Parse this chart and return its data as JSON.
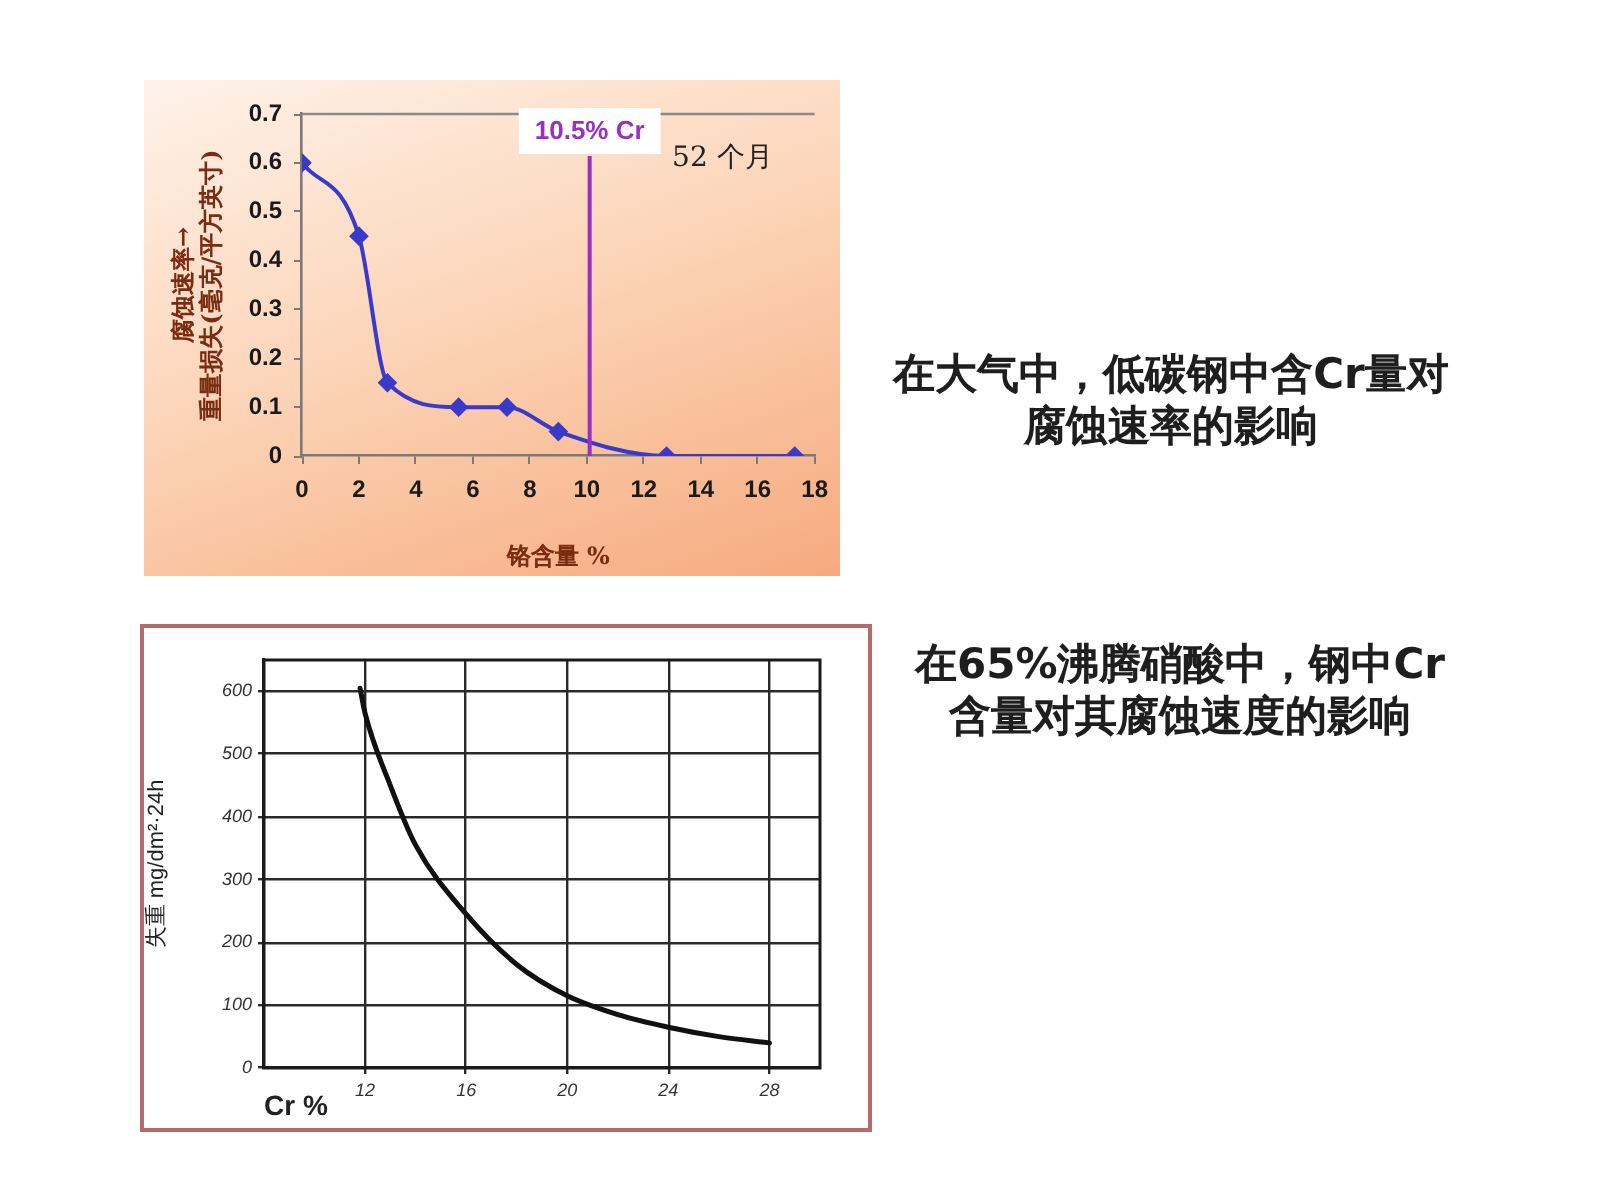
{
  "chart_data": [
    {
      "type": "line",
      "xlabel": "铬含量 %",
      "ylabel": "腐蚀速率→\n重量损失(毫克/平方英寸)",
      "x": [
        0,
        2,
        3,
        5.5,
        7.2,
        9,
        12.8,
        17.3
      ],
      "values": [
        0.6,
        0.45,
        0.15,
        0.1,
        0.1,
        0.05,
        0,
        0
      ],
      "color": "#3a3ac8",
      "marker": "diamond",
      "xlim": [
        0,
        18
      ],
      "xticks": [
        0,
        2,
        4,
        6,
        8,
        10,
        12,
        14,
        16,
        18
      ],
      "ylim": [
        0,
        0.7
      ],
      "yticks": [
        0,
        0.1,
        0.2,
        0.3,
        0.4,
        0.5,
        0.6,
        0.7
      ],
      "grid": false,
      "legend": false,
      "ref_lines": [
        {
          "axis": "x",
          "value": 10.1,
          "label": "10.5% Cr",
          "color": "#9a2fc4"
        }
      ],
      "annotations": [
        "52 个月"
      ]
    },
    {
      "type": "other",
      "title": "在大气中，低碳钢中含Cr量对腐蚀速率的影响"
    },
    {
      "type": "line",
      "xlabel": "Cr %",
      "ylabel": "失重 mg/dm²·24h",
      "x": [
        11.8,
        12,
        13,
        14,
        16,
        18,
        20,
        22,
        24,
        26,
        28
      ],
      "values": [
        605,
        565,
        450,
        355,
        245,
        165,
        115,
        85,
        65,
        50,
        40
      ],
      "color": "#111111",
      "marker": "none",
      "xlim": [
        8,
        30
      ],
      "xticks": [
        12,
        16,
        20,
        24,
        28
      ],
      "ylim": [
        0,
        650
      ],
      "yticks": [
        0,
        100,
        200,
        300,
        400,
        500,
        600
      ],
      "grid": true,
      "legend": false
    },
    {
      "type": "other",
      "title": "在65%沸腾硝酸中，钢中Cr含量对其腐蚀速度的影响"
    }
  ]
}
